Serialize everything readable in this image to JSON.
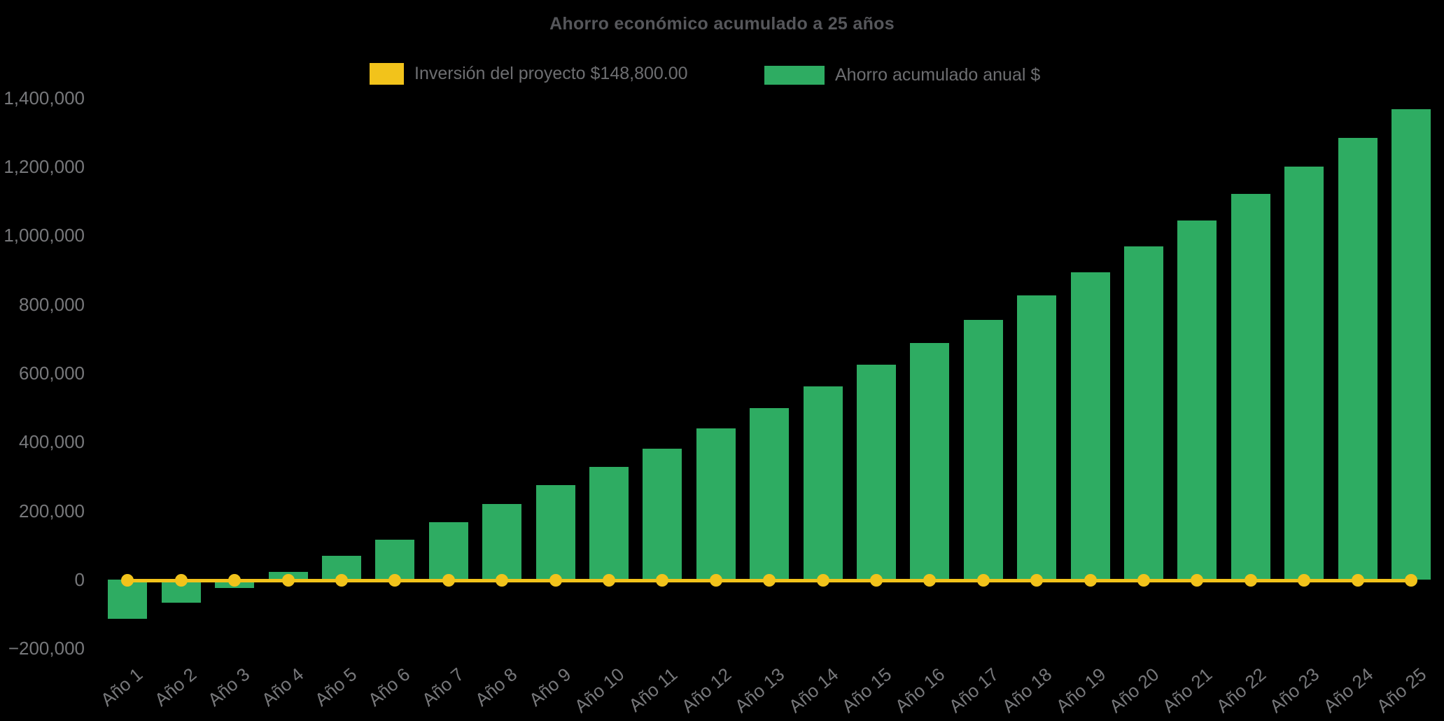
{
  "chart_data": {
    "type": "bar",
    "title": "Ahorro económico acumulado a 25 años",
    "background": "#000000",
    "grid": false,
    "legend_position": "top",
    "xlabel": "",
    "ylabel": "",
    "ylim": [
      -200000,
      1400000
    ],
    "categories": [
      "Año 1",
      "Año 2",
      "Año 3",
      "Año 4",
      "Año 5",
      "Año 6",
      "Año 7",
      "Año 8",
      "Año 9",
      "Año 10",
      "Año 11",
      "Año 12",
      "Año 13",
      "Año 14",
      "Año 15",
      "Año 16",
      "Año 17",
      "Año 18",
      "Año 19",
      "Año 20",
      "Año 21",
      "Año 22",
      "Año 23",
      "Año 24",
      "Año 25"
    ],
    "series": [
      {
        "name": "Inversión del proyecto $148,800.00",
        "type": "line",
        "color": "#F2C31B",
        "marker": "circle",
        "values": [
          0,
          0,
          0,
          0,
          0,
          0,
          0,
          0,
          0,
          0,
          0,
          0,
          0,
          0,
          0,
          0,
          0,
          0,
          0,
          0,
          0,
          0,
          0,
          0,
          0
        ]
      },
      {
        "name": "Ahorro acumulado anual $",
        "type": "bar",
        "color": "#2EAC62",
        "values": [
          -113000,
          -68000,
          -24000,
          23000,
          70000,
          116000,
          167000,
          220000,
          274000,
          327000,
          381000,
          439000,
          499000,
          561000,
          624000,
          688000,
          755000,
          825000,
          893000,
          968000,
          1043000,
          1121000,
          1200000,
          1283000,
          1366000
        ]
      }
    ],
    "yticks": [
      {
        "label": "1,400,000",
        "value": 1400000
      },
      {
        "label": "1,200,000",
        "value": 1200000
      },
      {
        "label": "1,000,000",
        "value": 1000000
      },
      {
        "label": "800,000",
        "value": 800000
      },
      {
        "label": "600,000",
        "value": 600000
      },
      {
        "label": "400,000",
        "value": 400000
      },
      {
        "label": "200,000",
        "value": 200000
      },
      {
        "label": "0",
        "value": 0
      },
      {
        "label": "−200,000",
        "value": -200000
      }
    ],
    "colors": {
      "title_text": "#56575B",
      "axis_text": "#77787B",
      "legend_text": "#6D6E71"
    }
  }
}
